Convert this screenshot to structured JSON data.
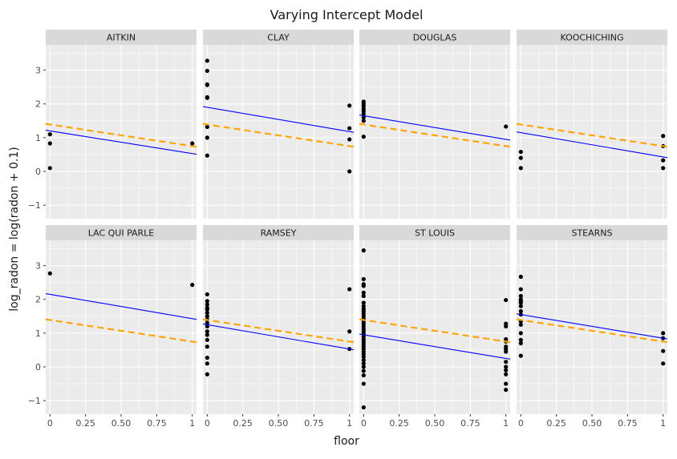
{
  "chart_data": {
    "type": "scatter",
    "title": "Varying Intercept Model",
    "xlabel": "floor",
    "ylabel": "log_radon = log(radon + 0.1)",
    "xlim": [
      -0.03,
      1.03
    ],
    "ylim": [
      -1.4,
      3.75
    ],
    "x_ticks": [
      0,
      0.25,
      0.5,
      0.75,
      1
    ],
    "x_tick_labels": [
      "0",
      "0.25",
      "0.50",
      "0.75",
      "1"
    ],
    "y_ticks": [
      -1,
      0,
      1,
      2,
      3
    ],
    "y_tick_labels": [
      "−1",
      "0",
      "1",
      "2",
      "3"
    ],
    "grid": true,
    "layout": "facet grid, 2 rows x 4 columns, shared axes",
    "colors": {
      "panel_bg": "#ebebeb",
      "grid": "#ffffff",
      "strip_bg": "#d9d9d9",
      "points": "#000000",
      "county_line": "#0000ff",
      "pooled_line": "#ffa500"
    },
    "pooled_line": {
      "intercept": 1.39,
      "slope": -0.64,
      "style": "dashed",
      "color": "#ffa500"
    },
    "panels": [
      {
        "county": "AITKIN",
        "line": {
          "intercept": 1.2,
          "slope": -0.67
        },
        "points": [
          [
            0,
            1.1
          ],
          [
            0,
            0.83
          ],
          [
            0,
            0.1
          ],
          [
            1,
            0.83
          ]
        ]
      },
      {
        "county": "CLAY",
        "line": {
          "intercept": 1.9,
          "slope": -0.72
        },
        "points": [
          [
            0,
            3.28
          ],
          [
            0,
            2.98
          ],
          [
            0,
            2.58
          ],
          [
            0,
            2.56
          ],
          [
            0,
            2.2
          ],
          [
            0,
            2.18
          ],
          [
            0,
            1.32
          ],
          [
            0,
            1.0
          ],
          [
            0,
            0.47
          ],
          [
            1,
            1.95
          ],
          [
            1,
            1.28
          ],
          [
            1,
            0.95
          ],
          [
            1,
            0.0
          ]
        ]
      },
      {
        "county": "DOUGLAS",
        "line": {
          "intercept": 1.65,
          "slope": -0.7
        },
        "points": [
          [
            0,
            2.07
          ],
          [
            0,
            2.0
          ],
          [
            0,
            1.93
          ],
          [
            0,
            1.85
          ],
          [
            0,
            1.78
          ],
          [
            0,
            1.7
          ],
          [
            0,
            1.6
          ],
          [
            0,
            1.5
          ],
          [
            0,
            1.03
          ],
          [
            1,
            1.33
          ]
        ]
      },
      {
        "county": "KOOCHICHING",
        "line": {
          "intercept": 1.15,
          "slope": -0.72
        },
        "points": [
          [
            0,
            0.58
          ],
          [
            0,
            0.4
          ],
          [
            0,
            0.1
          ],
          [
            1,
            1.05
          ],
          [
            1,
            0.75
          ],
          [
            1,
            0.33
          ],
          [
            1,
            0.1
          ]
        ]
      },
      {
        "county": "LAC QUI PARLE",
        "line": {
          "intercept": 2.15,
          "slope": -0.72
        },
        "points": [
          [
            0,
            2.77
          ],
          [
            1,
            2.43
          ]
        ]
      },
      {
        "county": "RAMSEY",
        "line": {
          "intercept": 1.25,
          "slope": -0.72
        },
        "points": [
          [
            0,
            2.15
          ],
          [
            0,
            1.95
          ],
          [
            0,
            1.85
          ],
          [
            0,
            1.75
          ],
          [
            0,
            1.7
          ],
          [
            0,
            1.6
          ],
          [
            0,
            1.5
          ],
          [
            0,
            1.4
          ],
          [
            0,
            1.3
          ],
          [
            0,
            1.2
          ],
          [
            0,
            1.05
          ],
          [
            0,
            0.95
          ],
          [
            0,
            0.8
          ],
          [
            0,
            0.6
          ],
          [
            0,
            0.27
          ],
          [
            0,
            0.1
          ],
          [
            0,
            -0.22
          ],
          [
            1,
            2.3
          ],
          [
            1,
            1.05
          ],
          [
            1,
            0.53
          ]
        ]
      },
      {
        "county": "ST LOUIS",
        "line": {
          "intercept": 0.95,
          "slope": -0.7
        },
        "points": [
          [
            0,
            3.45
          ],
          [
            0,
            2.6
          ],
          [
            0,
            2.45
          ],
          [
            0,
            2.4
          ],
          [
            0,
            2.2
          ],
          [
            0,
            2.1
          ],
          [
            0,
            1.9
          ],
          [
            0,
            1.8
          ],
          [
            0,
            1.72
          ],
          [
            0,
            1.65
          ],
          [
            0,
            1.58
          ],
          [
            0,
            1.5
          ],
          [
            0,
            1.42
          ],
          [
            0,
            1.35
          ],
          [
            0,
            1.28
          ],
          [
            0,
            1.2
          ],
          [
            0,
            1.12
          ],
          [
            0,
            1.05
          ],
          [
            0,
            0.98
          ],
          [
            0,
            0.9
          ],
          [
            0,
            0.82
          ],
          [
            0,
            0.75
          ],
          [
            0,
            0.68
          ],
          [
            0,
            0.6
          ],
          [
            0,
            0.53
          ],
          [
            0,
            0.45
          ],
          [
            0,
            0.38
          ],
          [
            0,
            0.3
          ],
          [
            0,
            0.2
          ],
          [
            0,
            0.1
          ],
          [
            0,
            0.0
          ],
          [
            0,
            -0.12
          ],
          [
            0,
            -0.25
          ],
          [
            0,
            -0.5
          ],
          [
            0,
            -1.2
          ],
          [
            1,
            1.98
          ],
          [
            1,
            1.28
          ],
          [
            1,
            1.2
          ],
          [
            1,
            0.82
          ],
          [
            1,
            0.75
          ],
          [
            1,
            0.6
          ],
          [
            1,
            0.53
          ],
          [
            1,
            0.45
          ],
          [
            1,
            0.15
          ],
          [
            1,
            0.0
          ],
          [
            1,
            -0.1
          ],
          [
            1,
            -0.22
          ],
          [
            1,
            -0.5
          ],
          [
            1,
            -0.68
          ]
        ]
      },
      {
        "county": "STEARNS",
        "line": {
          "intercept": 1.55,
          "slope": -0.7
        },
        "points": [
          [
            0,
            2.67
          ],
          [
            0,
            2.3
          ],
          [
            0,
            2.1
          ],
          [
            0,
            2.0
          ],
          [
            0,
            1.95
          ],
          [
            0,
            1.9
          ],
          [
            0,
            1.8
          ],
          [
            0,
            1.65
          ],
          [
            0,
            1.55
          ],
          [
            0,
            1.35
          ],
          [
            0,
            1.25
          ],
          [
            0,
            1.0
          ],
          [
            0,
            0.8
          ],
          [
            0,
            0.7
          ],
          [
            0,
            0.33
          ],
          [
            1,
            1.0
          ],
          [
            1,
            0.85
          ],
          [
            1,
            0.47
          ],
          [
            1,
            0.1
          ]
        ]
      }
    ]
  }
}
